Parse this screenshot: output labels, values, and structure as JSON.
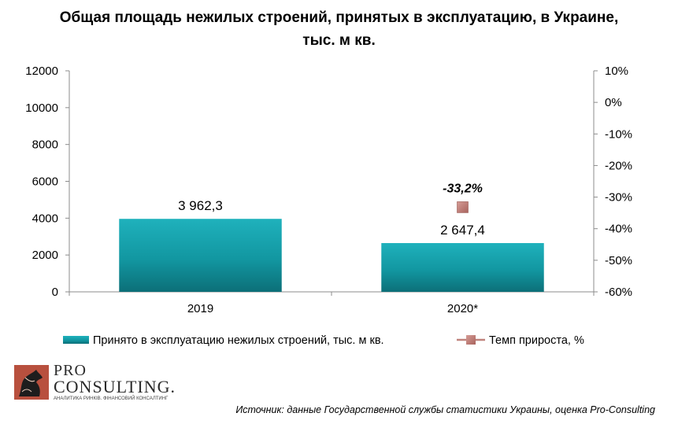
{
  "title_line1": "Общая площадь нежилых строений, принятых в эксплуатацию, в Украине,",
  "title_line2": "тыс. м кв.",
  "logo": {
    "pro": "PRO",
    "consulting": "CONSULTING.",
    "tagline": "АНАЛИТИКА РИНКІВ. ФІНАНСОВИЙ КОНСАЛТИНГ"
  },
  "source": "Источник: данные Государственной службы статистики Украины, оценка Pro-Consulting",
  "chart_data": {
    "type": "bar",
    "categories": [
      "2019",
      "2020*"
    ],
    "series": [
      {
        "name": "Принято  в эксплуатацию  нежилых  строений,  тыс. м кв.",
        "type": "bar",
        "axis": "left",
        "values": [
          3962.3,
          2647.4
        ],
        "labels": [
          "3 962,3",
          "2 647,4"
        ],
        "color": "#16a4b0"
      },
      {
        "name": "Темп  прироста,  %",
        "type": "scatter",
        "axis": "right",
        "values": [
          null,
          -33.2
        ],
        "labels": [
          "",
          "-33,2%"
        ],
        "color": "#c0837d"
      }
    ],
    "y_left": {
      "min": 0,
      "max": 12000,
      "ticks": [
        "0",
        "2000",
        "4000",
        "6000",
        "8000",
        "10000",
        "12000"
      ]
    },
    "y_right": {
      "min": -60,
      "max": 10,
      "ticks": [
        "-60%",
        "-50%",
        "-40%",
        "-30%",
        "-20%",
        "-10%",
        "0%",
        "10%"
      ]
    },
    "grid": false,
    "legend_position": "bottom"
  }
}
